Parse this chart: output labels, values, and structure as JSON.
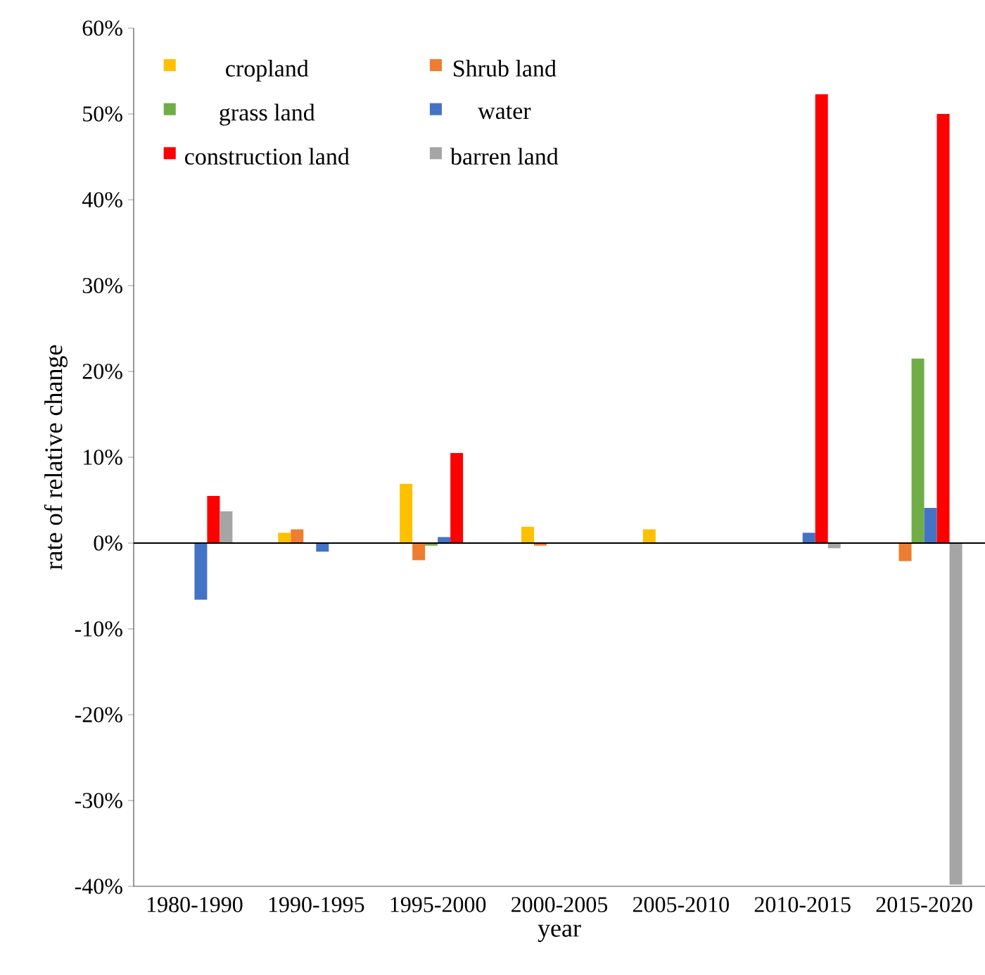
{
  "chart_data": {
    "type": "bar",
    "xlabel": "year",
    "ylabel": "rate of relative change",
    "categories": [
      "1980-1990",
      "1990-1995",
      "1995-2000",
      "2000-2005",
      "2005-2010",
      "2010-2015",
      "2015-2020"
    ],
    "series": [
      {
        "name": "cropland",
        "color": "#ffc000",
        "values": [
          0,
          1.2,
          6.9,
          1.9,
          1.6,
          0,
          0
        ]
      },
      {
        "name": "Shrub land",
        "color": "#ed7d31",
        "values": [
          0,
          1.6,
          -2.0,
          -0.3,
          0,
          0,
          -2.1
        ]
      },
      {
        "name": "grass land",
        "color": "#70ad47",
        "values": [
          0,
          0,
          -0.3,
          0,
          0,
          0,
          21.5
        ]
      },
      {
        "name": "water",
        "color": "#4472c4",
        "values": [
          -6.6,
          -1.0,
          0.7,
          0,
          0,
          1.2,
          4.1
        ]
      },
      {
        "name": "construction land",
        "color": "#ff0000",
        "values": [
          5.5,
          0,
          10.5,
          0,
          0,
          52.3,
          50.0
        ]
      },
      {
        "name": "barren land",
        "color": "#a5a5a5",
        "values": [
          3.7,
          0,
          0,
          0,
          0,
          -0.6,
          -39.8
        ]
      }
    ],
    "ylim": [
      -40,
      60
    ],
    "yticks": [
      {
        "value": -40,
        "label": "-40%"
      },
      {
        "value": -30,
        "label": "-30%"
      },
      {
        "value": -20,
        "label": "-20%"
      },
      {
        "value": -10,
        "label": "-10%"
      },
      {
        "value": 0,
        "label": "0%"
      },
      {
        "value": 10,
        "label": "10%"
      },
      {
        "value": 20,
        "label": "20%"
      },
      {
        "value": 30,
        "label": "30%"
      },
      {
        "value": 40,
        "label": "40%"
      },
      {
        "value": 50,
        "label": "50%"
      },
      {
        "value": 60,
        "label": "60%"
      }
    ],
    "ref_lines": [
      {
        "axis": "y",
        "value": 0,
        "color": "#000000"
      }
    ],
    "legend": "top left",
    "grid": false
  }
}
